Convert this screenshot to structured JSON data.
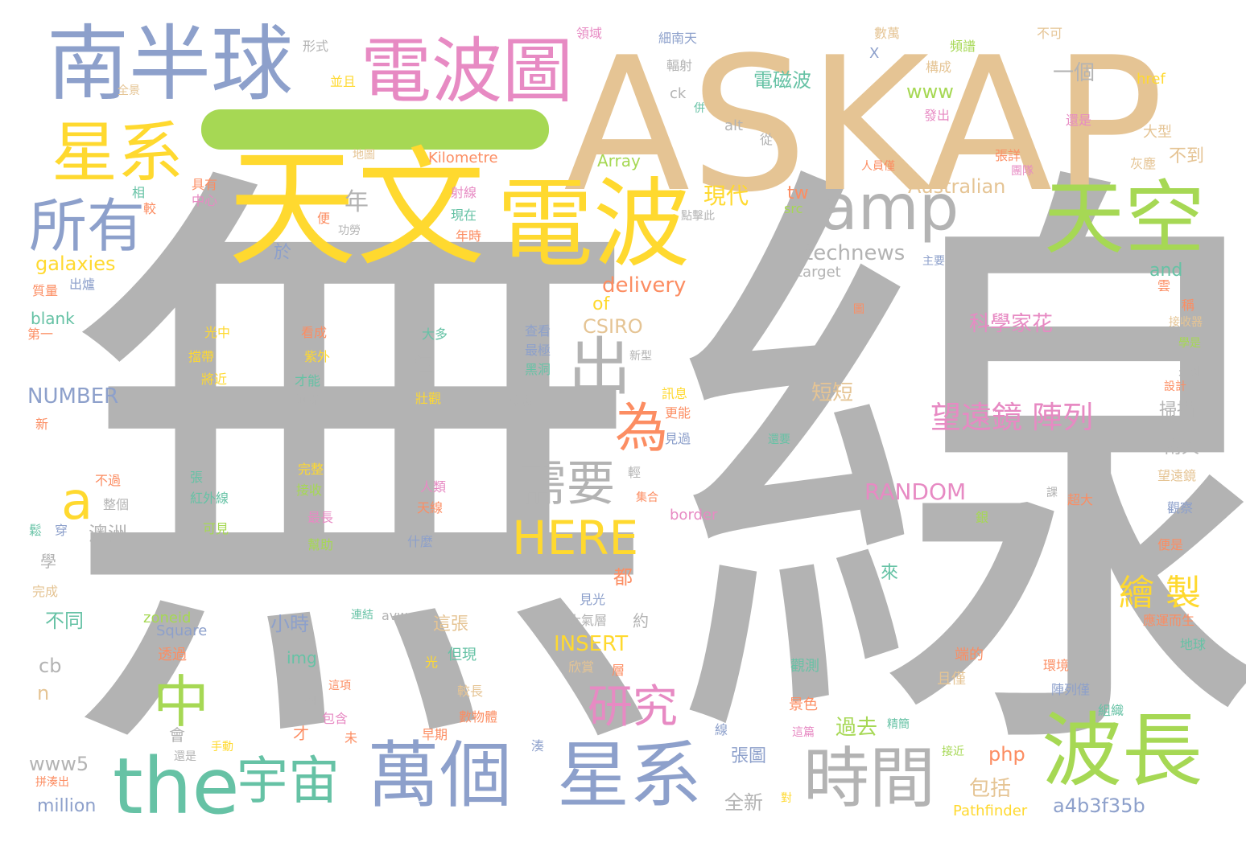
{
  "words": [
    {
      "text": "無線",
      "color": "#b3b3b3"
    },
    {
      "text": "ASKAP",
      "color": "#e5c494"
    },
    {
      "text": "天文",
      "color": "#ffd92f"
    },
    {
      "text": "電波",
      "color": "#ffd92f"
    },
    {
      "text": "南半球",
      "color": "#8da0cb"
    },
    {
      "text": "電波圖",
      "color": "#e78ac3"
    },
    {
      "text": "天空",
      "color": "#a6d854"
    },
    {
      "text": "amp",
      "color": "#b3b3b3"
    },
    {
      "text": "星系",
      "color": "#ffd92f"
    },
    {
      "text": "所有",
      "color": "#8da0cb"
    },
    {
      "text": "出",
      "color": "#b3b3b3"
    },
    {
      "text": "為",
      "color": "#fc8d62"
    },
    {
      "text": "需要",
      "color": "#b3b3b3"
    },
    {
      "text": "HERE",
      "color": "#ffd92f"
    },
    {
      "text": "a",
      "color": "#ffd92f"
    },
    {
      "text": "中",
      "color": "#a6d854"
    },
    {
      "text": "研究",
      "color": "#e78ac3"
    },
    {
      "text": "the",
      "color": "#66c2a5"
    },
    {
      "text": "宇宙",
      "color": "#66c2a5"
    },
    {
      "text": "萬個",
      "color": "#8da0cb"
    },
    {
      "text": "星系",
      "color": "#8da0cb"
    },
    {
      "text": "時間",
      "color": "#b3b3b3"
    },
    {
      "text": "波長",
      "color": "#a6d854"
    },
    {
      "text": "望遠鏡 陣列",
      "color": "#e78ac3"
    },
    {
      "text": "繪 製",
      "color": "#ffd92f"
    },
    {
      "text": "科學家花",
      "color": "#e78ac3"
    },
    {
      "text": "RANDOM",
      "color": "#e78ac3"
    },
    {
      "text": "technews",
      "color": "#b3b3b3"
    },
    {
      "text": "Australian",
      "color": "#e5c494"
    },
    {
      "text": "現代",
      "color": "#ffd92f"
    },
    {
      "text": "年",
      "color": "#b3b3b3"
    },
    {
      "text": "delivery",
      "color": "#fc8d62"
    },
    {
      "text": "NUMBER",
      "color": "#8da0cb"
    },
    {
      "text": "galaxies",
      "color": "#ffd92f"
    },
    {
      "text": "INSERT",
      "color": "#ffd92f"
    },
    {
      "text": "www",
      "color": "#a6d854"
    },
    {
      "text": "一個",
      "color": "#b3b3b3"
    },
    {
      "text": "電磁波",
      "color": "#66c2a5"
    },
    {
      "text": "短短",
      "color": "#e5c494"
    },
    {
      "text": "過去",
      "color": "#a6d854"
    },
    {
      "text": "包括",
      "color": "#e5c494"
    },
    {
      "text": "php",
      "color": "#fc8d62"
    },
    {
      "text": "a4b3f35b",
      "color": "#8da0cb"
    },
    {
      "text": "Pathfinder",
      "color": "#ffd92f"
    },
    {
      "text": "全新",
      "color": "#b3b3b3"
    },
    {
      "text": "張圖",
      "color": "#8da0cb"
    },
    {
      "text": "million",
      "color": "#8da0cb"
    },
    {
      "text": "www5",
      "color": "#b3b3b3"
    },
    {
      "text": "不同",
      "color": "#66c2a5"
    },
    {
      "text": "小時",
      "color": "#8da0cb"
    },
    {
      "text": "澳洲",
      "color": "#b3b3b3"
    },
    {
      "text": "cb",
      "color": "#b3b3b3"
    },
    {
      "text": "n",
      "color": "#e5c494"
    },
    {
      "text": "Kilometre",
      "color": "#fc8d62"
    },
    {
      "text": "Array",
      "color": "#a6d854"
    },
    {
      "text": "CSIRO",
      "color": "#e5c494"
    },
    {
      "text": "of",
      "color": "#ffd92f"
    },
    {
      "text": "and",
      "color": "#66c2a5"
    },
    {
      "text": "掃描",
      "color": "#b3b3b3"
    },
    {
      "text": "南天",
      "color": "#b3b3b3"
    },
    {
      "text": "不到",
      "color": "#e5c494"
    },
    {
      "text": "大型",
      "color": "#e5c494"
    },
    {
      "text": "位",
      "color": "#b3b3b3"
    },
    {
      "text": "於",
      "color": "#8da0cb"
    },
    {
      "text": "tw",
      "color": "#fc8d62"
    },
    {
      "text": "src",
      "color": "#a6d854"
    },
    {
      "text": "target",
      "color": "#b3b3b3"
    },
    {
      "text": "blank",
      "color": "#66c2a5"
    },
    {
      "text": "border",
      "color": "#e78ac3"
    },
    {
      "text": "zoneid",
      "color": "#a6d854"
    },
    {
      "text": "Square",
      "color": "#8da0cb"
    },
    {
      "text": "img",
      "color": "#66c2a5"
    },
    {
      "text": "href",
      "color": "#ffd92f"
    },
    {
      "text": "alt",
      "color": "#b3b3b3"
    },
    {
      "text": "ck",
      "color": "#b3b3b3"
    },
    {
      "text": "X",
      "color": "#8da0cb"
    },
    {
      "text": "都",
      "color": "#fc8d62"
    },
    {
      "text": "來",
      "color": "#66c2a5"
    },
    {
      "text": "約",
      "color": "#b3b3b3"
    },
    {
      "text": "這張",
      "color": "#e5c494"
    },
    {
      "text": "形式",
      "color": "#b3b3b3"
    },
    {
      "text": "領域",
      "color": "#e78ac3"
    },
    {
      "text": "細南天",
      "color": "#8da0cb"
    },
    {
      "text": "數萬",
      "color": "#e5c494"
    },
    {
      "text": "頻譜",
      "color": "#a6d854"
    },
    {
      "text": "不可",
      "color": "#e5c494"
    },
    {
      "text": "輻射",
      "color": "#b3b3b3"
    },
    {
      "text": "構成",
      "color": "#e5c494"
    },
    {
      "text": "並且",
      "color": "#ffd92f"
    },
    {
      "text": "全景",
      "color": "#e5c494"
    },
    {
      "text": "發出",
      "color": "#e78ac3"
    },
    {
      "text": "還是",
      "color": "#e78ac3"
    },
    {
      "text": "具有",
      "color": "#fc8d62"
    },
    {
      "text": "中心",
      "color": "#e78ac3"
    },
    {
      "text": "射線",
      "color": "#e78ac3"
    },
    {
      "text": "現在",
      "color": "#66c2a5"
    },
    {
      "text": "年時",
      "color": "#fc8d62"
    },
    {
      "text": "功勞",
      "color": "#b3b3b3"
    },
    {
      "text": "點擊此",
      "color": "#b3b3b3"
    },
    {
      "text": "張詳",
      "color": "#fc8d62"
    },
    {
      "text": "團隊",
      "color": "#e78ac3"
    },
    {
      "text": "人員僅",
      "color": "#fc8d62"
    },
    {
      "text": "地圖",
      "color": "#e5c494"
    },
    {
      "text": "灰塵",
      "color": "#e5c494"
    },
    {
      "text": "質量",
      "color": "#fc8d62"
    },
    {
      "text": "出爐",
      "color": "#8da0cb"
    },
    {
      "text": "第一",
      "color": "#fc8d62"
    },
    {
      "text": "新",
      "color": "#fc8d62"
    },
    {
      "text": "光中",
      "color": "#ffd92f"
    },
    {
      "text": "擋帶",
      "color": "#ffd92f"
    },
    {
      "text": "將近",
      "color": "#ffd92f"
    },
    {
      "text": "看成",
      "color": "#fc8d62"
    },
    {
      "text": "紫外",
      "color": "#ffd92f"
    },
    {
      "text": "才能",
      "color": "#66c2a5"
    },
    {
      "text": "河系",
      "color": "#b3b3b3"
    },
    {
      "text": "大多",
      "color": "#66c2a5"
    },
    {
      "text": "壯觀",
      "color": "#ffd92f"
    },
    {
      "text": "查看",
      "color": "#8da0cb"
    },
    {
      "text": "最極",
      "color": "#8da0cb"
    },
    {
      "text": "黑洞",
      "color": "#66c2a5"
    },
    {
      "text": "意思",
      "color": "#b3b3b3"
    },
    {
      "text": "新型",
      "color": "#b3b3b3"
    },
    {
      "text": "訊息",
      "color": "#ffd92f"
    },
    {
      "text": "更能",
      "color": "#fc8d62"
    },
    {
      "text": "見過",
      "color": "#8da0cb"
    },
    {
      "text": "還要",
      "color": "#66c2a5"
    },
    {
      "text": "完整",
      "color": "#ffd92f"
    },
    {
      "text": "接收",
      "color": "#a6d854"
    },
    {
      "text": "最長",
      "color": "#e78ac3"
    },
    {
      "text": "幫助",
      "color": "#a6d854"
    },
    {
      "text": "人類",
      "color": "#e78ac3"
    },
    {
      "text": "天線",
      "color": "#fc8d62"
    },
    {
      "text": "什麼",
      "color": "#8da0cb"
    },
    {
      "text": "張",
      "color": "#66c2a5"
    },
    {
      "text": "紅外線",
      "color": "#66c2a5"
    },
    {
      "text": "可見",
      "color": "#a6d854"
    },
    {
      "text": "不過",
      "color": "#fc8d62"
    },
    {
      "text": "整個",
      "color": "#b3b3b3"
    },
    {
      "text": "鬆",
      "color": "#66c2a5"
    },
    {
      "text": "穿",
      "color": "#8da0cb"
    },
    {
      "text": "學",
      "color": "#b3b3b3"
    },
    {
      "text": "完成",
      "color": "#e5c494"
    },
    {
      "text": "輕",
      "color": "#b3b3b3"
    },
    {
      "text": "集合",
      "color": "#fc8d62"
    },
    {
      "text": "見光",
      "color": "#8da0cb"
    },
    {
      "text": "大氣層",
      "color": "#b3b3b3"
    },
    {
      "text": "連結",
      "color": "#66c2a5"
    },
    {
      "text": "avw",
      "color": "#b3b3b3"
    },
    {
      "text": "透過",
      "color": "#fc8d62"
    },
    {
      "text": "光",
      "color": "#ffd92f"
    },
    {
      "text": "但現",
      "color": "#66c2a5"
    },
    {
      "text": "欣賞",
      "color": "#e5c494"
    },
    {
      "text": "層",
      "color": "#fc8d62"
    },
    {
      "text": "端的",
      "color": "#fc8d62"
    },
    {
      "text": "觀測",
      "color": "#66c2a5"
    },
    {
      "text": "且僅",
      "color": "#e5c494"
    },
    {
      "text": "內",
      "color": "#b3b3b3"
    },
    {
      "text": "才",
      "color": "#fc8d62"
    },
    {
      "text": "會",
      "color": "#b3b3b3"
    },
    {
      "text": "這項",
      "color": "#fc8d62"
    },
    {
      "text": "包含",
      "color": "#e78ac3"
    },
    {
      "text": "未",
      "color": "#fc8d62"
    },
    {
      "text": "較長",
      "color": "#e5c494"
    },
    {
      "text": "數物體",
      "color": "#fc8d62"
    },
    {
      "text": "早期",
      "color": "#fc8d62"
    },
    {
      "text": "湊",
      "color": "#8da0cb"
    },
    {
      "text": "景色",
      "color": "#fc8d62"
    },
    {
      "text": "線",
      "color": "#8da0cb"
    },
    {
      "text": "這篇",
      "color": "#e78ac3"
    },
    {
      "text": "精簡",
      "color": "#66c2a5"
    },
    {
      "text": "接近",
      "color": "#a6d854"
    },
    {
      "text": "對",
      "color": "#ffd92f"
    },
    {
      "text": "手動",
      "color": "#ffd92f"
    },
    {
      "text": "還是",
      "color": "#b3b3b3"
    },
    {
      "text": "拼湊出",
      "color": "#fc8d62"
    },
    {
      "text": "環境",
      "color": "#fc8d62"
    },
    {
      "text": "陣列僅",
      "color": "#8da0cb"
    },
    {
      "text": "組織",
      "color": "#66c2a5"
    },
    {
      "text": "應運而生",
      "color": "#fc8d62"
    },
    {
      "text": "地球",
      "color": "#66c2a5"
    },
    {
      "text": "便是",
      "color": "#fc8d62"
    },
    {
      "text": "觀察",
      "color": "#8da0cb"
    },
    {
      "text": "望遠鏡",
      "color": "#e5c494"
    },
    {
      "text": "超大",
      "color": "#fc8d62"
    },
    {
      "text": "銀",
      "color": "#a6d854"
    },
    {
      "text": "課",
      "color": "#b3b3b3"
    },
    {
      "text": "設計",
      "color": "#fc8d62"
    },
    {
      "text": "未知",
      "color": "#b3b3b3"
    },
    {
      "text": "學是",
      "color": "#a6d854"
    },
    {
      "text": "接收器",
      "color": "#e5c494"
    },
    {
      "text": "稱",
      "color": "#fc8d62"
    },
    {
      "text": "雲",
      "color": "#fc8d62"
    },
    {
      "text": "主要",
      "color": "#8da0cb"
    },
    {
      "text": "圖",
      "color": "#fc8d62"
    },
    {
      "text": "便",
      "color": "#fc8d62"
    },
    {
      "text": "相",
      "color": "#66c2a5"
    },
    {
      "text": "較",
      "color": "#fc8d62"
    },
    {
      "text": "從",
      "color": "#b3b3b3"
    },
    {
      "text": "併",
      "color": "#66c2a5"
    }
  ]
}
